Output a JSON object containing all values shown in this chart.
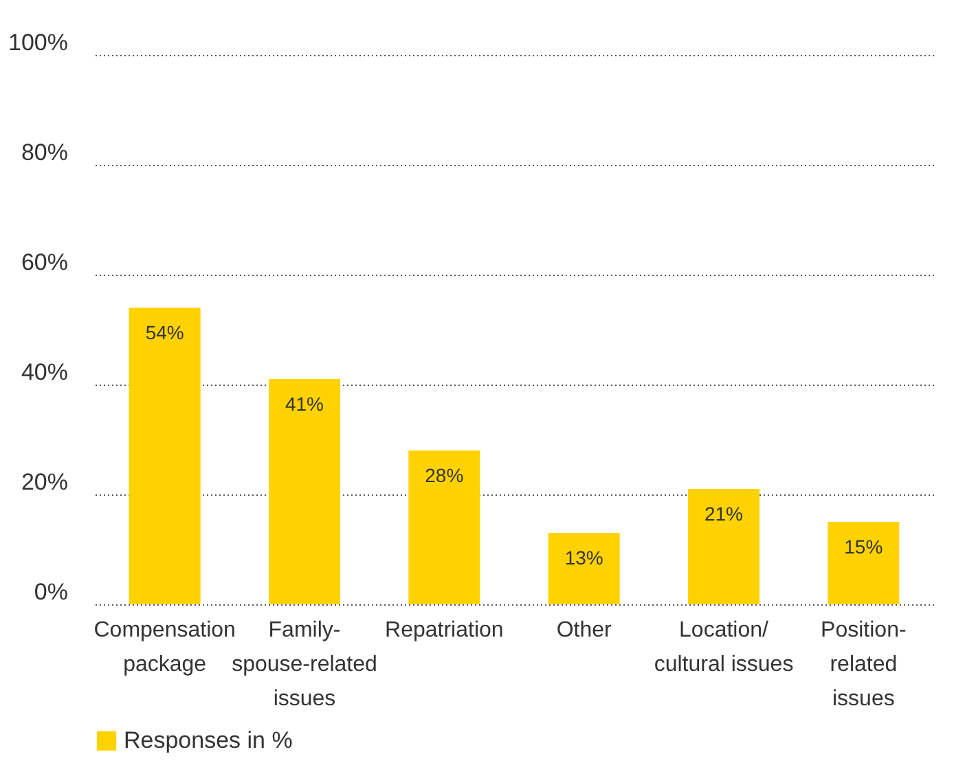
{
  "chart_data": {
    "type": "bar",
    "categories": [
      "Compensation\npackage",
      "Family-\nspouse-related\nissues",
      "Repatriation",
      "Other",
      "Location/\ncultural issues",
      "Position-\nrelated\nissues"
    ],
    "series": [
      {
        "name": "Responses in %",
        "color": "#ffd200",
        "values": [
          54,
          41,
          28,
          13,
          21,
          15
        ],
        "value_labels": [
          "54%",
          "41%",
          "28%",
          "13%",
          "21%",
          "15%"
        ]
      }
    ],
    "ylim": [
      0,
      100
    ],
    "yticks": [
      {
        "value": 0,
        "label": "0%"
      },
      {
        "value": 20,
        "label": "20%"
      },
      {
        "value": 40,
        "label": "40%"
      },
      {
        "value": 60,
        "label": "60%"
      },
      {
        "value": 80,
        "label": "80%"
      },
      {
        "value": 100,
        "label": "100%"
      }
    ],
    "grid": "y",
    "legend": "bottom left"
  }
}
